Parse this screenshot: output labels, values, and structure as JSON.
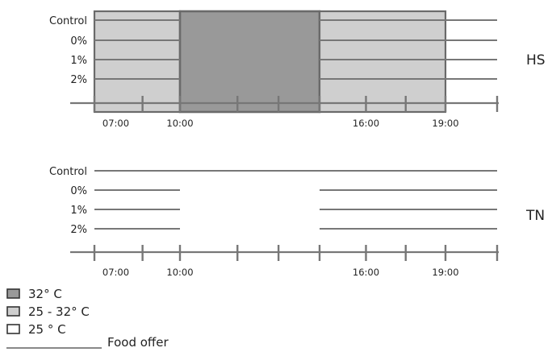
{
  "diagram": {
    "time_range": [
      6.0,
      21.75
    ],
    "panels": [
      {
        "id": "hs",
        "label": "HS",
        "rows": [
          "Control",
          "0%",
          "1%",
          "2%"
        ],
        "zones": [
          {
            "from": 6.0,
            "to": 10.0,
            "temperature": "25 - 32° C"
          },
          {
            "from": 10.0,
            "to": 14.25,
            "temperature": "32° C"
          },
          {
            "from": 14.25,
            "to": 19.0,
            "temperature": "25 - 32° C"
          }
        ],
        "food_offer": [
          [
            [
              6.0,
              10.0
            ],
            [
              14.25,
              21.75
            ]
          ],
          [
            [
              6.0,
              10.0
            ],
            [
              14.25,
              21.75
            ]
          ],
          [
            [
              6.0,
              10.0
            ],
            [
              14.25,
              21.75
            ]
          ],
          [
            [
              6.0,
              10.0
            ],
            [
              14.25,
              21.75
            ]
          ]
        ],
        "tick_times": [
          6.0,
          8.25,
          10.0,
          11.75,
          13.0,
          14.25,
          16.0,
          17.5,
          19.0,
          21.75
        ],
        "tick_labels": [
          {
            "time": 7.0,
            "text": "07:00"
          },
          {
            "time": 10.0,
            "text": "10:00"
          },
          {
            "time": 16.0,
            "text": "16:00"
          },
          {
            "time": 19.0,
            "text": "19:00"
          }
        ]
      },
      {
        "id": "tn",
        "label": "TN",
        "rows": [
          "Control",
          "0%",
          "1%",
          "2%"
        ],
        "zones": [],
        "food_offer": [
          [
            [
              6.0,
              21.75
            ]
          ],
          [
            [
              6.0,
              10.0
            ],
            [
              14.25,
              21.75
            ]
          ],
          [
            [
              6.0,
              10.0
            ],
            [
              14.25,
              21.75
            ]
          ],
          [
            [
              6.0,
              10.0
            ],
            [
              14.25,
              21.75
            ]
          ]
        ],
        "tick_times": [
          6.0,
          8.25,
          10.0,
          11.75,
          13.0,
          14.25,
          16.0,
          17.5,
          19.0,
          21.75
        ],
        "tick_labels": [
          {
            "time": 7.0,
            "text": "07:00"
          },
          {
            "time": 10.0,
            "text": "10:00"
          },
          {
            "time": 16.0,
            "text": "16:00"
          },
          {
            "time": 19.0,
            "text": "19:00"
          }
        ]
      }
    ]
  },
  "legend": [
    {
      "kind": "swatch",
      "fill": "#999999",
      "text": "32° C"
    },
    {
      "kind": "swatch",
      "fill": "#cfcfcf",
      "text": "25 - 32° C"
    },
    {
      "kind": "swatch",
      "fill": "#ffffff",
      "text": "25 ° C"
    },
    {
      "kind": "line",
      "text": "Food offer"
    }
  ],
  "colors": {
    "line": "#777777",
    "zone_32": "#999999",
    "zone_25_32": "#cfcfcf",
    "zone_border": "#6a6a6a",
    "text": "#222222"
  }
}
